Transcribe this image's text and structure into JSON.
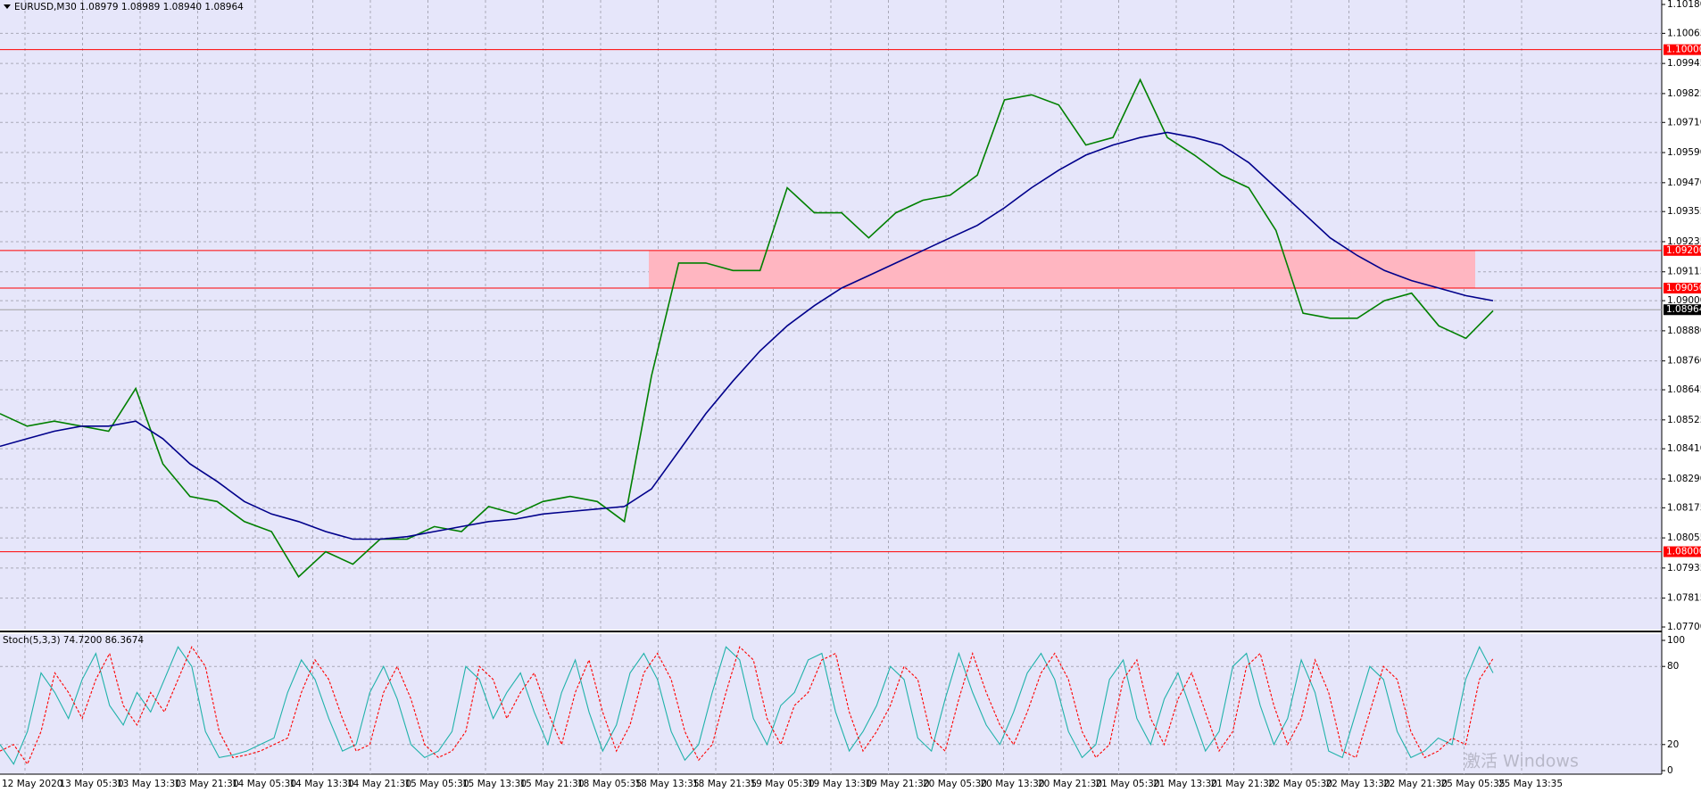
{
  "chart_data": [
    {
      "type": "line",
      "title": "EURUSD,M30 1.08979 1.08989 1.08940 1.08964",
      "ylim": [
        1.077,
        1.1018
      ],
      "yticks": [
        {
          "value": 1.1018,
          "label": "1.10180"
        },
        {
          "value": 1.10065,
          "label": "1.10065"
        },
        {
          "value": 1.09945,
          "label": "1.09945"
        },
        {
          "value": 1.09825,
          "label": "1.09825"
        },
        {
          "value": 1.0971,
          "label": "1.09710"
        },
        {
          "value": 1.0959,
          "label": "1.09590"
        },
        {
          "value": 1.0947,
          "label": "1.09470"
        },
        {
          "value": 1.09355,
          "label": "1.09355"
        },
        {
          "value": 1.09235,
          "label": "1.09235"
        },
        {
          "value": 1.09115,
          "label": "1.09115"
        },
        {
          "value": 1.09,
          "label": "1.09000"
        },
        {
          "value": 1.0888,
          "label": "1.08880"
        },
        {
          "value": 1.0876,
          "label": "1.08760"
        },
        {
          "value": 1.08645,
          "label": "1.08645"
        },
        {
          "value": 1.08525,
          "label": "1.08525"
        },
        {
          "value": 1.0841,
          "label": "1.08410"
        },
        {
          "value": 1.0829,
          "label": "1.08290"
        },
        {
          "value": 1.08175,
          "label": "1.08175"
        },
        {
          "value": 1.08055,
          "label": "1.08055"
        },
        {
          "value": 1.07935,
          "label": "1.07935"
        },
        {
          "value": 1.07815,
          "label": "1.07815"
        },
        {
          "value": 1.077,
          "label": "1.07700"
        }
      ],
      "levels": [
        {
          "value": 1.1,
          "label": "1.10000"
        },
        {
          "value": 1.092,
          "label": "1.09200"
        },
        {
          "value": 1.0905,
          "label": "1.09050"
        },
        {
          "value": 1.08,
          "label": "1.08000"
        }
      ],
      "zone": [
        1.0905,
        1.092
      ],
      "zone_color": "#ffb6c1",
      "level_color": "#ff0000",
      "current": {
        "value": 1.08964,
        "label": "1.08964"
      },
      "grid": true,
      "series": [
        {
          "color": "#008000",
          "values": [
            1.0855,
            1.085,
            1.0852,
            1.085,
            1.0848,
            1.0865,
            1.0835,
            1.0822,
            1.082,
            1.0812,
            1.0808,
            1.079,
            1.08,
            1.0795,
            1.0805,
            1.0805,
            1.081,
            1.0808,
            1.0818,
            1.0815,
            1.082,
            1.0822,
            1.082,
            1.0812,
            1.087,
            1.0915,
            1.0915,
            1.0912,
            1.0912,
            1.0945,
            1.0935,
            1.0935,
            1.0925,
            1.0935,
            1.094,
            1.0942,
            1.095,
            1.098,
            1.0982,
            1.0978,
            1.0962,
            1.0965,
            1.0988,
            1.0965,
            1.0958,
            1.095,
            1.0945,
            1.0928,
            1.0895,
            1.0893,
            1.0893,
            1.09,
            1.0903,
            1.089,
            1.0885,
            1.0896
          ]
        },
        {
          "color": "#00008b",
          "values": [
            1.0842,
            1.0845,
            1.0848,
            1.085,
            1.085,
            1.0852,
            1.0845,
            1.0835,
            1.0828,
            1.082,
            1.0815,
            1.0812,
            1.0808,
            1.0805,
            1.0805,
            1.0806,
            1.0808,
            1.081,
            1.0812,
            1.0813,
            1.0815,
            1.0816,
            1.0817,
            1.0818,
            1.0825,
            1.084,
            1.0855,
            1.0868,
            1.088,
            1.089,
            1.0898,
            1.0905,
            1.091,
            1.0915,
            1.092,
            1.0925,
            1.093,
            1.0937,
            1.0945,
            1.0952,
            1.0958,
            1.0962,
            1.0965,
            1.0967,
            1.0965,
            1.0962,
            1.0955,
            1.0945,
            1.0935,
            1.0925,
            1.0918,
            1.0912,
            1.0908,
            1.0905,
            1.0902,
            1.09
          ]
        }
      ]
    },
    {
      "type": "line",
      "title": "Stoch(5,3,3) 74.7200 86.3674",
      "ylim": [
        0,
        100
      ],
      "yticks": [
        0,
        20,
        80,
        100
      ],
      "grid": true,
      "series": [
        {
          "color": "#20b2aa",
          "dashed": false,
          "values": [
            20,
            5,
            30,
            75,
            60,
            40,
            70,
            90,
            50,
            35,
            60,
            45,
            70,
            95,
            80,
            30,
            10,
            12,
            15,
            20,
            25,
            60,
            85,
            70,
            40,
            15,
            20,
            60,
            80,
            55,
            20,
            10,
            15,
            30,
            80,
            70,
            40,
            60,
            75,
            45,
            20,
            60,
            85,
            45,
            15,
            35,
            75,
            90,
            70,
            30,
            8,
            20,
            60,
            95,
            85,
            40,
            20,
            50,
            60,
            85,
            90,
            45,
            15,
            30,
            50,
            80,
            70,
            25,
            15,
            55,
            90,
            60,
            35,
            20,
            45,
            75,
            90,
            70,
            30,
            10,
            20,
            70,
            85,
            40,
            20,
            55,
            75,
            45,
            15,
            30,
            80,
            90,
            50,
            20,
            40,
            85,
            60,
            15,
            10,
            45,
            80,
            70,
            30,
            10,
            15,
            25,
            20,
            70,
            95,
            75
          ]
        },
        {
          "color": "#ff0000",
          "dashed": true,
          "values": [
            15,
            20,
            5,
            30,
            75,
            60,
            40,
            70,
            90,
            50,
            35,
            60,
            45,
            70,
            95,
            80,
            30,
            10,
            12,
            15,
            20,
            25,
            60,
            85,
            70,
            40,
            15,
            20,
            60,
            80,
            55,
            20,
            10,
            15,
            30,
            80,
            70,
            40,
            60,
            75,
            45,
            20,
            60,
            85,
            45,
            15,
            35,
            75,
            90,
            70,
            30,
            8,
            20,
            60,
            95,
            85,
            40,
            20,
            50,
            60,
            85,
            90,
            45,
            15,
            30,
            50,
            80,
            70,
            25,
            15,
            55,
            90,
            60,
            35,
            20,
            45,
            75,
            90,
            70,
            30,
            10,
            20,
            70,
            85,
            40,
            20,
            55,
            75,
            45,
            15,
            30,
            80,
            90,
            50,
            20,
            40,
            85,
            60,
            15,
            10,
            45,
            80,
            70,
            30,
            10,
            15,
            25,
            20,
            70,
            86
          ]
        }
      ]
    }
  ],
  "time_axis": {
    "labels": [
      "12 May 2020",
      "13 May 05:30",
      "13 May 13:30",
      "13 May 21:30",
      "14 May 05:30",
      "14 May 13:30",
      "14 May 21:30",
      "15 May 05:30",
      "15 May 13:30",
      "15 May 21:30",
      "18 May 05:35",
      "18 May 13:35",
      "18 May 21:35",
      "19 May 05:30",
      "19 May 13:30",
      "19 May 21:30",
      "20 May 05:30",
      "20 May 13:30",
      "20 May 21:30",
      "21 May 05:30",
      "21 May 13:30",
      "21 May 21:30",
      "22 May 05:30",
      "22 May 13:30",
      "22 May 21:30",
      "25 May 05:35",
      "25 May 13:35"
    ]
  },
  "watermark": "激活 Windows"
}
